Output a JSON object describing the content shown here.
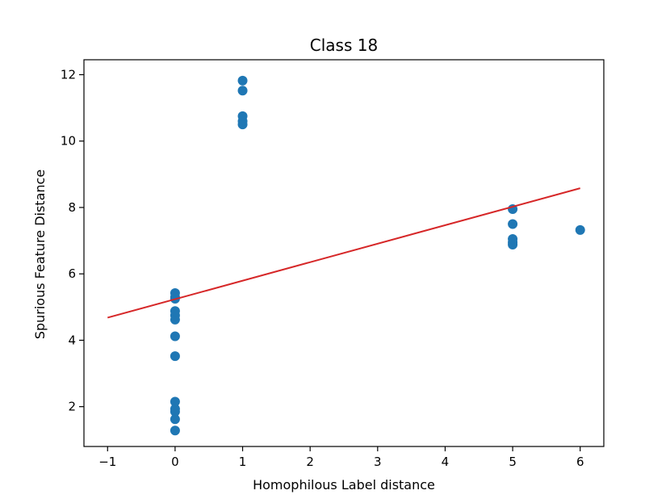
{
  "chart_data": {
    "type": "scatter",
    "title": "Class 18",
    "xlabel": "Homophilous Label distance",
    "ylabel": "Spurious Feature Distance",
    "xlim": [
      -1.35,
      6.35
    ],
    "ylim": [
      0.8,
      12.45
    ],
    "xticks": [
      -1,
      0,
      1,
      2,
      3,
      4,
      5,
      6
    ],
    "xtick_labels": [
      "−1",
      "0",
      "1",
      "2",
      "3",
      "4",
      "5",
      "6"
    ],
    "yticks": [
      2,
      4,
      6,
      8,
      10,
      12
    ],
    "ytick_labels": [
      "2",
      "4",
      "6",
      "8",
      "10",
      "12"
    ],
    "grid": false,
    "series": [
      {
        "kind": "scatter",
        "color": "#1f77b4",
        "points": [
          [
            0,
            1.28
          ],
          [
            0,
            1.62
          ],
          [
            0,
            1.85
          ],
          [
            0,
            1.93
          ],
          [
            0,
            2.15
          ],
          [
            0,
            3.52
          ],
          [
            0,
            4.12
          ],
          [
            0,
            4.62
          ],
          [
            0,
            4.75
          ],
          [
            0,
            4.88
          ],
          [
            0,
            5.25
          ],
          [
            0,
            5.3
          ],
          [
            0,
            5.42
          ],
          [
            1,
            10.5
          ],
          [
            1,
            10.6
          ],
          [
            1,
            10.75
          ],
          [
            1,
            11.52
          ],
          [
            1,
            11.82
          ],
          [
            5,
            6.88
          ],
          [
            5,
            6.95
          ],
          [
            5,
            7.05
          ],
          [
            5,
            7.5
          ],
          [
            5,
            7.95
          ],
          [
            6,
            7.32
          ]
        ]
      },
      {
        "kind": "line",
        "color": "#d62728",
        "points": [
          [
            -1,
            4.68
          ],
          [
            6,
            8.58
          ]
        ]
      }
    ]
  }
}
